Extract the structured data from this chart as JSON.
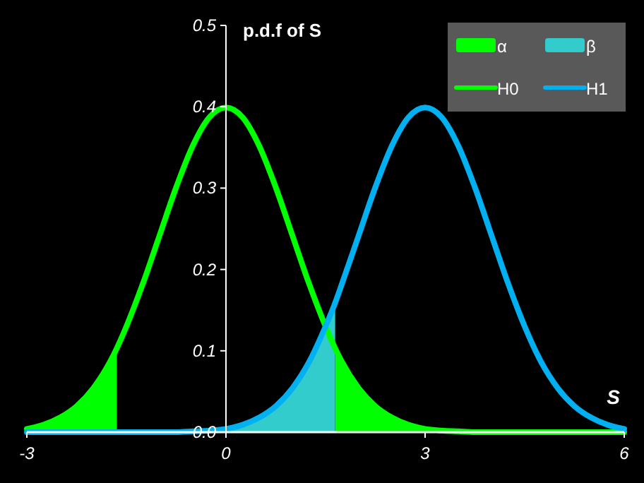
{
  "chart_data": {
    "type": "line",
    "ylabel": "p.d.f of S",
    "xlabel": "S",
    "x": [
      -3,
      -2.75,
      -2.5,
      -2.25,
      -2,
      -1.75,
      -1.645,
      -1.5,
      -1.25,
      -1,
      -0.75,
      -0.5,
      -0.25,
      0,
      0.25,
      0.5,
      0.75,
      1,
      1.25,
      1.5,
      1.645,
      1.75,
      2,
      2.25,
      2.5,
      2.75,
      3,
      3.25,
      3.5,
      3.75,
      4,
      4.25,
      4.5,
      4.75,
      5,
      5.25,
      5.5,
      5.75,
      6
    ],
    "series": [
      {
        "name": "α",
        "type": "area",
        "color": "#00ff00",
        "values": [
          0.004,
          0.009,
          0.018,
          0.032,
          0.054,
          0.086,
          0.103,
          null,
          null,
          null,
          null,
          null,
          null,
          null,
          null,
          null,
          null,
          null,
          null,
          null,
          0.103,
          0.086,
          0.054,
          0.032,
          0.018,
          0.009,
          0.004,
          0.002,
          0.001,
          0,
          0,
          0,
          0,
          0,
          0,
          0,
          0,
          0,
          0
        ]
      },
      {
        "name": "β",
        "type": "area",
        "color": "#33cccc",
        "values": [
          0,
          0,
          0,
          0,
          0,
          0,
          0,
          0,
          0,
          0,
          0,
          0.001,
          0.002,
          0.004,
          0.009,
          0.018,
          0.032,
          0.054,
          0.086,
          0.13,
          0.159,
          null,
          null,
          null,
          null,
          null,
          null,
          null,
          null,
          null,
          null,
          null,
          null,
          null,
          null,
          null,
          null,
          null,
          null
        ]
      },
      {
        "name": "H0",
        "color": "#00ff00",
        "values": [
          0.004,
          0.009,
          0.018,
          0.032,
          0.054,
          0.086,
          0.103,
          0.13,
          0.183,
          0.242,
          0.301,
          0.352,
          0.387,
          0.399,
          0.387,
          0.352,
          0.301,
          0.242,
          0.183,
          0.13,
          0.103,
          0.086,
          0.054,
          0.032,
          0.018,
          0.009,
          0.004,
          0.002,
          0.001,
          0,
          0,
          0,
          0,
          0,
          0,
          0,
          0,
          0,
          0
        ]
      },
      {
        "name": "H1",
        "color": "#00b0f0",
        "values": [
          0,
          0,
          0,
          0,
          0,
          0,
          0,
          0,
          0,
          0,
          0,
          0.001,
          0.002,
          0.004,
          0.009,
          0.018,
          0.032,
          0.054,
          0.086,
          0.13,
          0.159,
          0.183,
          0.242,
          0.301,
          0.352,
          0.387,
          0.399,
          0.387,
          0.352,
          0.301,
          0.242,
          0.183,
          0.13,
          0.086,
          0.054,
          0.032,
          0.018,
          0.009,
          0.004
        ]
      }
    ],
    "xlim": [
      -3,
      6
    ],
    "xticks": [
      -3,
      0,
      3,
      6
    ],
    "ylim": [
      0,
      0.5
    ],
    "yticks": [
      {
        "value": 0,
        "label": "0.0"
      },
      0.1,
      0.2,
      0.3,
      0.4,
      0.5
    ],
    "grid": false,
    "legend": "top right",
    "line_style": "solid",
    "marker": "none"
  }
}
